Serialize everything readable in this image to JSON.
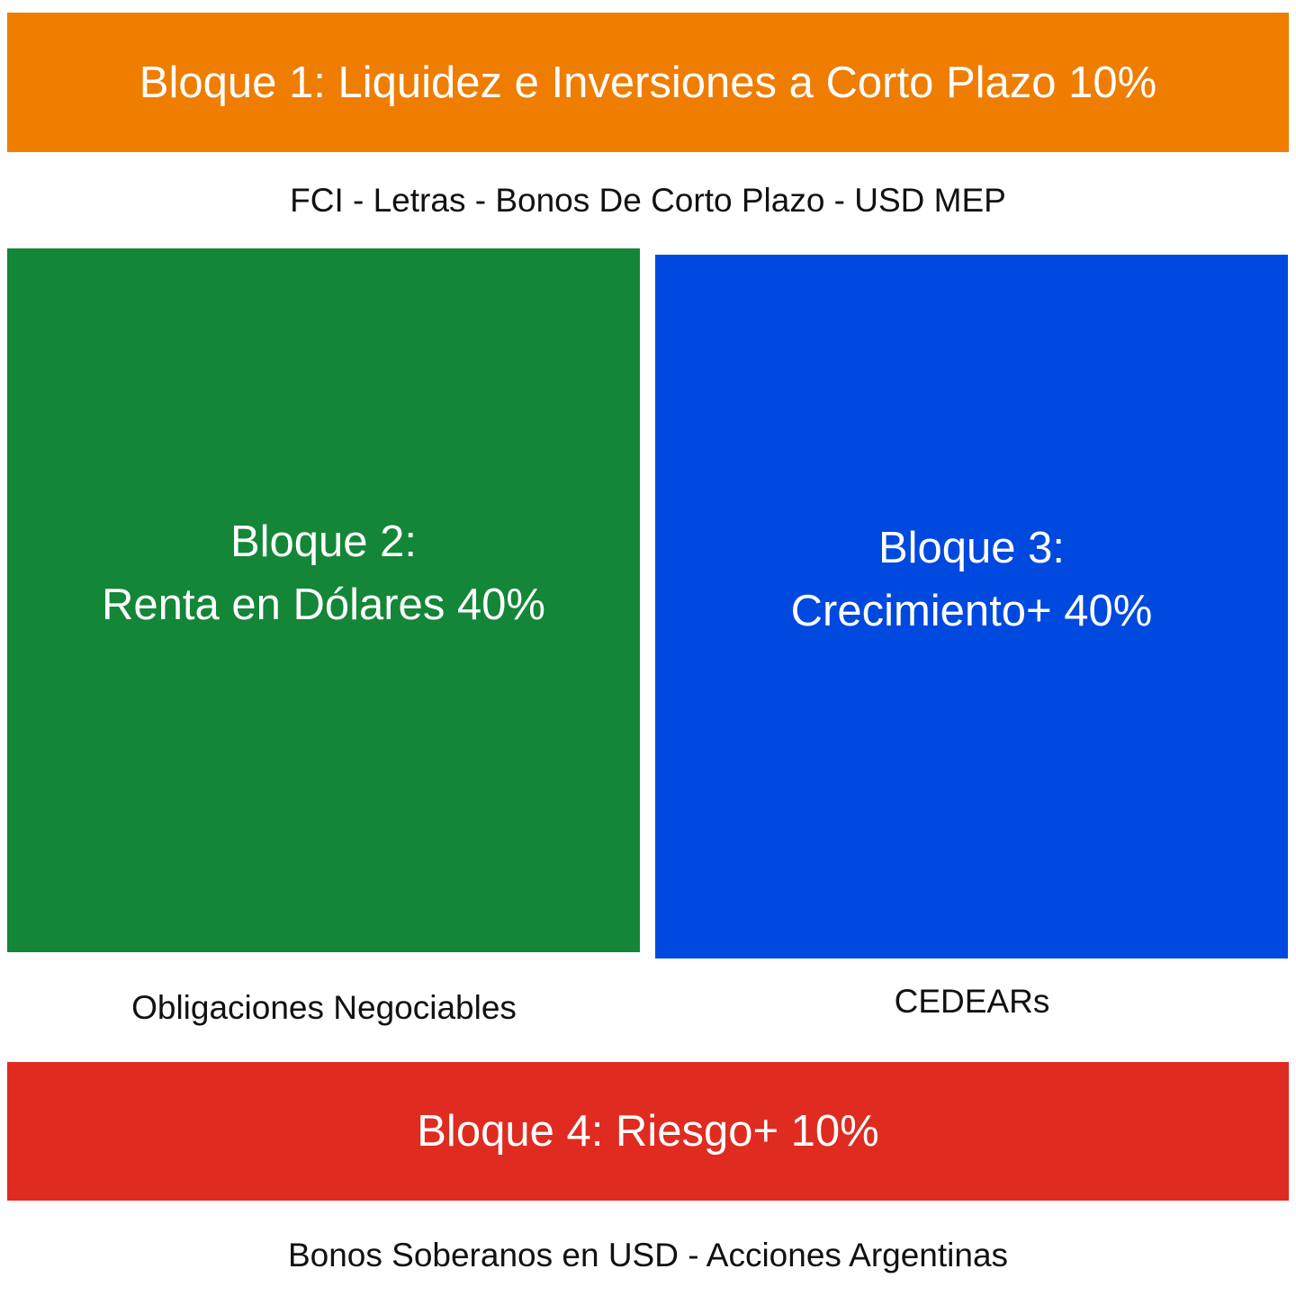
{
  "colors": {
    "block1": "#EF7D00",
    "block2": "#148638",
    "block3": "#0049DF",
    "block4": "#E02B20"
  },
  "block1": {
    "title": "Bloque 1: Liquidez e Inversiones a Corto Plazo 10%",
    "caption": "FCI - Letras - Bonos De Corto Plazo - USD MEP"
  },
  "block2": {
    "title_line1": "Bloque 2:",
    "title_line2": "Renta en Dólares 40%",
    "caption": "Obligaciones Negociables"
  },
  "block3": {
    "title_line1": "Bloque 3:",
    "title_line2": "Crecimiento+ 40%",
    "caption": "CEDEARs"
  },
  "block4": {
    "title": "Bloque 4: Riesgo+ 10%",
    "caption": "Bonos Soberanos en USD - Acciones Argentinas"
  }
}
